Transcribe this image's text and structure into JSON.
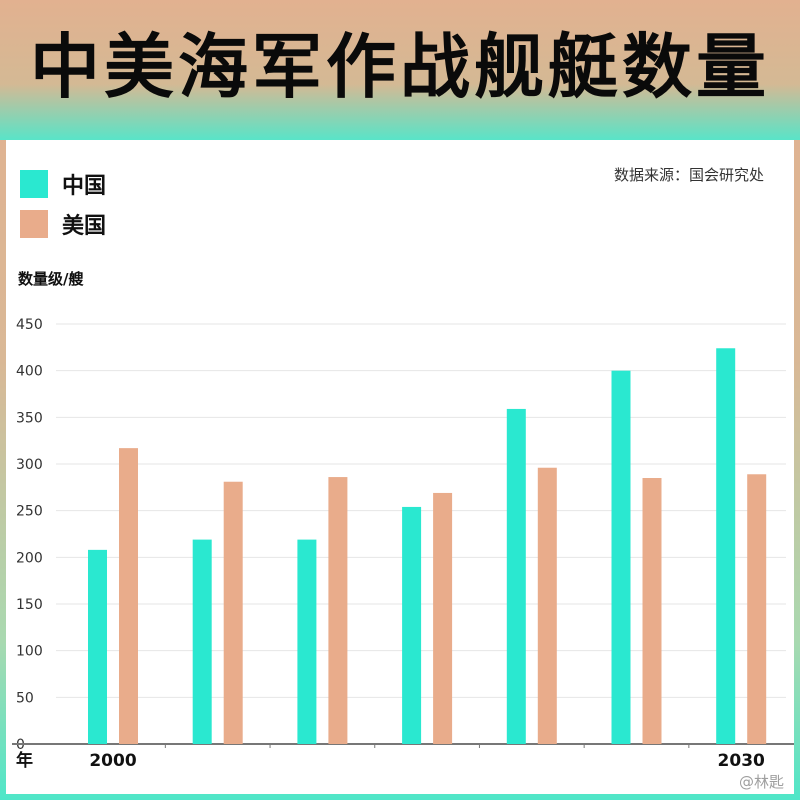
{
  "title": "中美海军作战舰艇数量",
  "source": "数据来源：国会研究处",
  "colors": {
    "china": "#2ae8d0",
    "usa": "#e9ac8b"
  },
  "watermark": "@林匙",
  "chart_data": {
    "type": "bar",
    "ylabel": "数量级/艘",
    "xlabel": "年",
    "ylim": [
      0,
      450
    ],
    "yticks": [
      0,
      50,
      100,
      150,
      200,
      250,
      300,
      350,
      400,
      450
    ],
    "grid": true,
    "legend_position": "top-left",
    "categories": [
      "2000",
      "",
      "",
      "",
      "",
      "",
      "2030"
    ],
    "series": [
      {
        "name": "中国",
        "values": [
          208,
          219,
          219,
          254,
          359,
          400,
          424
        ]
      },
      {
        "name": "美国",
        "values": [
          317,
          281,
          286,
          269,
          296,
          285,
          289
        ]
      }
    ]
  }
}
